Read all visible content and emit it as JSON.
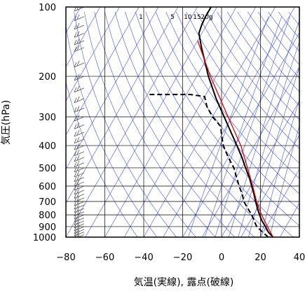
{
  "chart_data": {
    "type": "line",
    "title": "",
    "xlabel": "気温(実線), 露点(破線)",
    "ylabel": "気圧(hPa)",
    "x_unit": "°C",
    "y_unit": "hPa",
    "y_scale": "log",
    "y_inverted": true,
    "xlim": [
      -80,
      40
    ],
    "ylim": [
      1000,
      100
    ],
    "skew": true,
    "grid": true,
    "x_ticks": [
      -80,
      -60,
      -40,
      -20,
      0,
      20,
      40
    ],
    "x_tick_labels": [
      "−80",
      "−60",
      "−40",
      "−20",
      "0",
      "20",
      "40"
    ],
    "y_ticks": [
      100,
      200,
      300,
      400,
      500,
      600,
      700,
      800,
      900,
      1000
    ],
    "y_tick_labels": [
      "100",
      "200",
      "300",
      "400",
      "500",
      "600",
      "700",
      "800",
      "900",
      "1000"
    ],
    "mixing_ratio_labels": [
      "1",
      "5",
      "10",
      "15",
      "20g"
    ],
    "colors": {
      "temperature": "#000000",
      "dewpoint": "#000000",
      "parcel": "#e00000",
      "reference_lines": "#3344dd",
      "wind_barbs": "#555555",
      "grid": "#000000"
    },
    "series": [
      {
        "role": "temperature",
        "style": "solid",
        "points": [
          {
            "p": 1000,
            "t": 26.5
          },
          {
            "p": 950,
            "t": 22.5
          },
          {
            "p": 900,
            "t": 19.5
          },
          {
            "p": 850,
            "t": 16.0
          },
          {
            "p": 800,
            "t": 13.0
          },
          {
            "p": 750,
            "t": 10.0
          },
          {
            "p": 700,
            "t": 7.0
          },
          {
            "p": 650,
            "t": 4.0
          },
          {
            "p": 600,
            "t": 0.5
          },
          {
            "p": 560,
            "t": -2.5
          },
          {
            "p": 500,
            "t": -8.0
          },
          {
            "p": 450,
            "t": -13.0
          },
          {
            "p": 400,
            "t": -19.0
          },
          {
            "p": 350,
            "t": -26.0
          },
          {
            "p": 300,
            "t": -34.0
          },
          {
            "p": 250,
            "t": -43.5
          },
          {
            "p": 200,
            "t": -54.0
          },
          {
            "p": 150,
            "t": -66.0
          },
          {
            "p": 130,
            "t": -71.5
          },
          {
            "p": 120,
            "t": -72.5
          },
          {
            "p": 110,
            "t": -73.0
          },
          {
            "p": 100,
            "t": -73.0
          }
        ]
      },
      {
        "role": "dewpoint",
        "style": "dashed",
        "points": [
          {
            "p": 1000,
            "t": 24.0
          },
          {
            "p": 950,
            "t": 19.5
          },
          {
            "p": 900,
            "t": 15.0
          },
          {
            "p": 850,
            "t": 12.0
          },
          {
            "p": 800,
            "t": 9.0
          },
          {
            "p": 750,
            "t": 5.0
          },
          {
            "p": 700,
            "t": 1.0
          },
          {
            "p": 650,
            "t": -2.0
          },
          {
            "p": 600,
            "t": -6.0
          },
          {
            "p": 560,
            "t": -9.0
          },
          {
            "p": 500,
            "t": -14.0
          },
          {
            "p": 450,
            "t": -20.0
          },
          {
            "p": 400,
            "t": -26.0
          },
          {
            "p": 360,
            "t": -30.0
          },
          {
            "p": 330,
            "t": -33.0
          },
          {
            "p": 300,
            "t": -40.0
          },
          {
            "p": 270,
            "t": -46.0
          },
          {
            "p": 245,
            "t": -50.0
          },
          {
            "p": 240,
            "t": -58.0
          },
          {
            "p": 240,
            "t": -80.0
          }
        ]
      },
      {
        "role": "parcel",
        "style": "solid",
        "points": [
          {
            "p": 1000,
            "t": 26.5
          },
          {
            "p": 900,
            "t": 20.5
          },
          {
            "p": 800,
            "t": 14.0
          },
          {
            "p": 700,
            "t": 7.5
          },
          {
            "p": 600,
            "t": 1.0
          },
          {
            "p": 500,
            "t": -7.0
          },
          {
            "p": 400,
            "t": -17.0
          },
          {
            "p": 300,
            "t": -32.0
          },
          {
            "p": 200,
            "t": -53.0
          },
          {
            "p": 140,
            "t": -70.0
          }
        ]
      }
    ],
    "wind_levels_hPa": [
      1000,
      975,
      950,
      925,
      900,
      875,
      850,
      825,
      800,
      775,
      750,
      725,
      700,
      675,
      650,
      625,
      600,
      575,
      550,
      525,
      500,
      475,
      450,
      425,
      400,
      375,
      350,
      325,
      300,
      275,
      250,
      225,
      200,
      175,
      150,
      140,
      130,
      120,
      110,
      100
    ]
  }
}
